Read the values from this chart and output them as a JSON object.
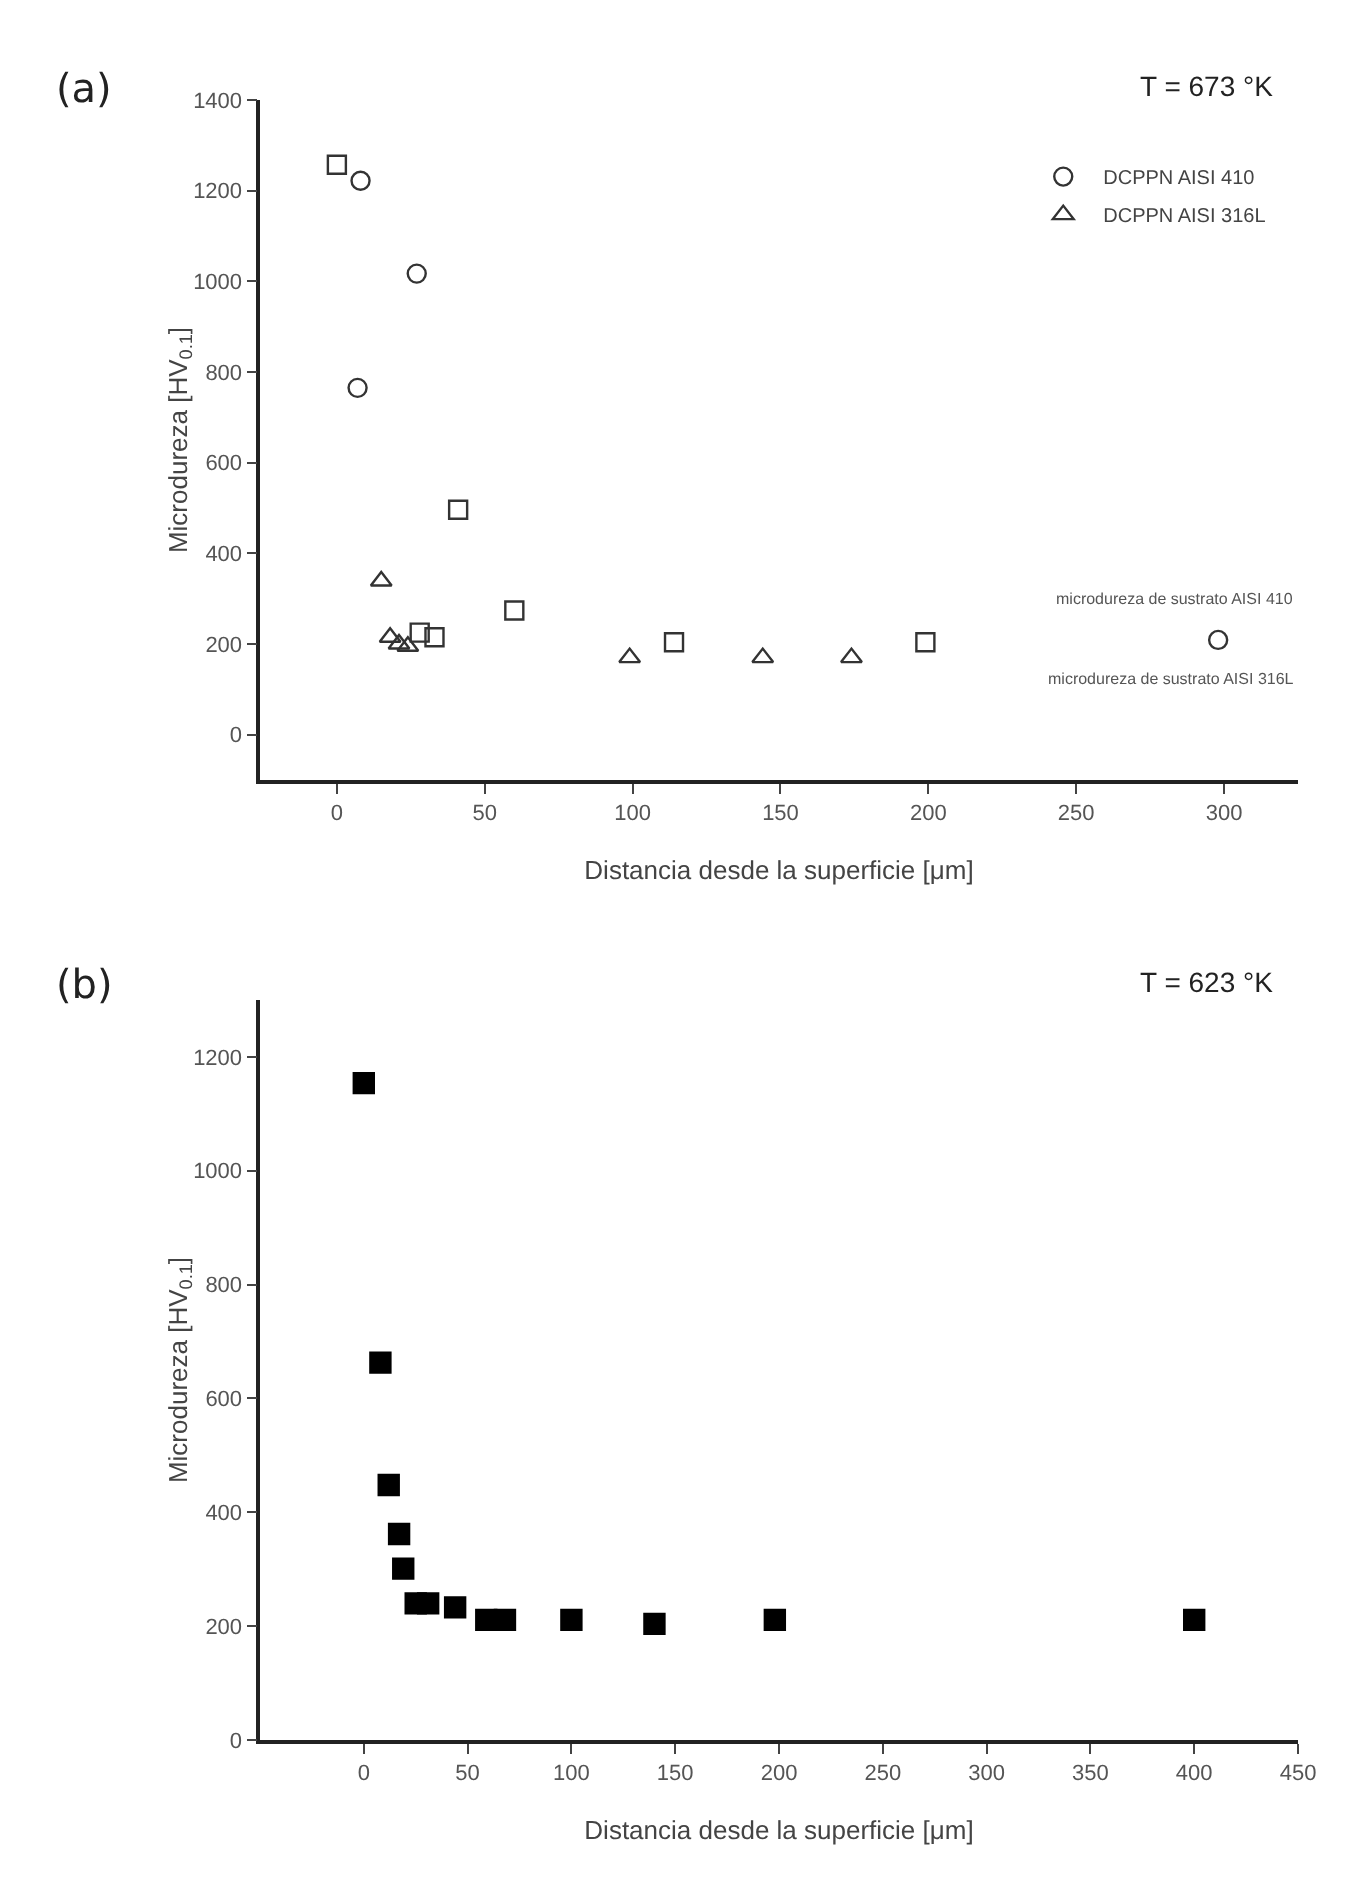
{
  "chart_data": [
    {
      "type": "scatter",
      "title": "(a)",
      "xlabel": "Distancia desde la superficie [μm]",
      "ylabel": "Microdureza [HV$_{0.1}$]",
      "xlim": [
        -26,
        325
      ],
      "xticks": [
        0,
        50,
        100,
        150,
        200,
        250,
        300
      ],
      "ylim": [
        -100,
        1400
      ],
      "yticks": [
        0,
        200,
        400,
        600,
        800,
        1000,
        1200,
        1400
      ],
      "grid": false,
      "legend": "top right",
      "annotations": [
        "T = 673 °K",
        "microdureza de sustrato AISI 410",
        "microdureza de sustrato AISI 316L"
      ],
      "series": [
        {
          "name": "DCPPN AISI 410",
          "color": "#333333",
          "marker": "circle",
          "x": [
            8,
            27,
            7,
            298
          ],
          "values": [
            1222,
            1017,
            765,
            209
          ]
        },
        {
          "name": "DCPPN AISI 316L",
          "color": "#333333",
          "marker": "triangle",
          "x": [
            15,
            18,
            21,
            24,
            99,
            144,
            174
          ],
          "values": [
            339,
            215,
            200,
            195,
            170,
            170,
            170
          ]
        },
        {
          "color": "#333333",
          "marker": "square",
          "x": [
            0,
            41,
            28,
            33,
            60,
            114,
            199
          ],
          "values": [
            1257,
            496,
            225,
            215,
            274,
            204,
            204
          ]
        }
      ]
    },
    {
      "type": "scatter",
      "title": "(b)",
      "xlabel": "Distancia desde la superficie [μm]",
      "ylabel": "Microdureza [HV$_{0.1}$]",
      "xlim": [
        -50,
        450
      ],
      "xticks": [
        0,
        50,
        100,
        150,
        200,
        250,
        300,
        350,
        400,
        450
      ],
      "ylim": [
        0,
        1300
      ],
      "yticks": [
        0,
        200,
        400,
        600,
        800,
        1000,
        1200
      ],
      "grid": false,
      "annotations": [
        "T = 623 °K"
      ],
      "series": [
        {
          "color": "#000000",
          "marker": "square",
          "x": [
            0,
            8,
            12,
            17,
            19,
            25,
            31,
            44,
            59,
            68,
            100,
            140,
            198,
            400
          ],
          "values": [
            1154,
            663,
            448,
            362,
            301,
            240,
            240,
            233,
            211,
            211,
            211,
            204,
            211,
            211
          ]
        }
      ]
    }
  ]
}
